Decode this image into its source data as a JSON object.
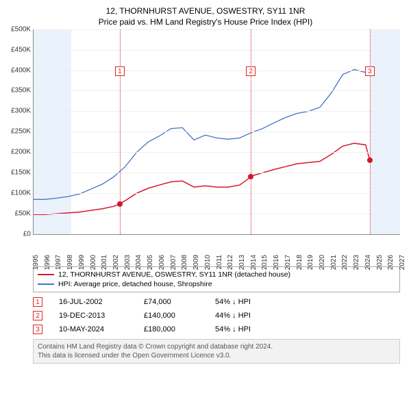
{
  "title": "12, THORNHURST AVENUE, OSWESTRY, SY11 1NR",
  "subtitle": "Price paid vs. HM Land Registry's House Price Index (HPI)",
  "chart": {
    "type": "line",
    "background_color": "#ffffff",
    "grid_color": "#eeeeee",
    "axis_color": "#888888",
    "label_fontsize": 10,
    "ylim": [
      0,
      500000
    ],
    "ytick_step": 50000,
    "yticks": [
      "£0",
      "£50K",
      "£100K",
      "£150K",
      "£200K",
      "£250K",
      "£300K",
      "£350K",
      "£400K",
      "£450K",
      "£500K"
    ],
    "xlim": [
      1995,
      2027
    ],
    "xticks": [
      1995,
      1996,
      1997,
      1998,
      1999,
      2000,
      2001,
      2002,
      2003,
      2004,
      2005,
      2006,
      2007,
      2008,
      2009,
      2010,
      2011,
      2012,
      2013,
      2014,
      2015,
      2016,
      2017,
      2018,
      2019,
      2020,
      2021,
      2022,
      2023,
      2024,
      2025,
      2026,
      2027
    ],
    "shaded_future": {
      "from": 2024.4,
      "to": 2027,
      "color": "#eaf2fb"
    },
    "shaded_past": {
      "from": 1995,
      "to": 1998.3,
      "color": "#eaf2fb"
    },
    "series": [
      {
        "name": "property",
        "label": "12, THORNHURST AVENUE, OSWESTRY, SY11 1NR (detached house)",
        "color": "#d9142c",
        "line_width": 1.5,
        "points": [
          [
            1995,
            48000
          ],
          [
            1996,
            48000
          ],
          [
            1997,
            50000
          ],
          [
            1998,
            52000
          ],
          [
            1999,
            54000
          ],
          [
            2000,
            58000
          ],
          [
            2001,
            62000
          ],
          [
            2002,
            68000
          ],
          [
            2002.53,
            74000
          ],
          [
            2003,
            82000
          ],
          [
            2004,
            100000
          ],
          [
            2005,
            112000
          ],
          [
            2006,
            120000
          ],
          [
            2007,
            128000
          ],
          [
            2008,
            130000
          ],
          [
            2009,
            115000
          ],
          [
            2010,
            118000
          ],
          [
            2011,
            115000
          ],
          [
            2012,
            115000
          ],
          [
            2013,
            120000
          ],
          [
            2013.97,
            140000
          ],
          [
            2014,
            142000
          ],
          [
            2015,
            150000
          ],
          [
            2016,
            158000
          ],
          [
            2017,
            165000
          ],
          [
            2018,
            172000
          ],
          [
            2019,
            175000
          ],
          [
            2020,
            178000
          ],
          [
            2021,
            195000
          ],
          [
            2022,
            215000
          ],
          [
            2023,
            222000
          ],
          [
            2024,
            218000
          ],
          [
            2024.36,
            180000
          ]
        ]
      },
      {
        "name": "hpi",
        "label": "HPI: Average price, detached house, Shropshire",
        "color": "#4472c4",
        "line_width": 1.3,
        "points": [
          [
            1995,
            85000
          ],
          [
            1996,
            85000
          ],
          [
            1997,
            88000
          ],
          [
            1998,
            92000
          ],
          [
            1999,
            98000
          ],
          [
            2000,
            110000
          ],
          [
            2001,
            122000
          ],
          [
            2002,
            140000
          ],
          [
            2003,
            165000
          ],
          [
            2004,
            200000
          ],
          [
            2005,
            225000
          ],
          [
            2006,
            240000
          ],
          [
            2007,
            258000
          ],
          [
            2008,
            260000
          ],
          [
            2009,
            230000
          ],
          [
            2010,
            242000
          ],
          [
            2011,
            235000
          ],
          [
            2012,
            232000
          ],
          [
            2013,
            235000
          ],
          [
            2014,
            248000
          ],
          [
            2015,
            258000
          ],
          [
            2016,
            272000
          ],
          [
            2017,
            285000
          ],
          [
            2018,
            295000
          ],
          [
            2019,
            300000
          ],
          [
            2020,
            310000
          ],
          [
            2021,
            345000
          ],
          [
            2022,
            390000
          ],
          [
            2023,
            402000
          ],
          [
            2024,
            395000
          ],
          [
            2024.4,
            400000
          ]
        ]
      }
    ],
    "sale_markers": [
      {
        "num": "1",
        "x": 2002.53,
        "y": 74000,
        "box_y": 410000
      },
      {
        "num": "2",
        "x": 2013.97,
        "y": 140000,
        "box_y": 410000
      },
      {
        "num": "3",
        "x": 2024.36,
        "y": 180000,
        "box_y": 410000
      }
    ]
  },
  "legend": [
    {
      "color": "#d9142c",
      "label": "12, THORNHURST AVENUE, OSWESTRY, SY11 1NR (detached house)"
    },
    {
      "color": "#4472c4",
      "label": "HPI: Average price, detached house, Shropshire"
    }
  ],
  "sales": [
    {
      "num": "1",
      "date": "16-JUL-2002",
      "price": "£74,000",
      "cmp": "54% ↓ HPI"
    },
    {
      "num": "2",
      "date": "19-DEC-2013",
      "price": "£140,000",
      "cmp": "44% ↓ HPI"
    },
    {
      "num": "3",
      "date": "10-MAY-2024",
      "price": "£180,000",
      "cmp": "54% ↓ HPI"
    }
  ],
  "credit_line1": "Contains HM Land Registry data © Crown copyright and database right 2024.",
  "credit_line2": "This data is licensed under the Open Government Licence v3.0."
}
